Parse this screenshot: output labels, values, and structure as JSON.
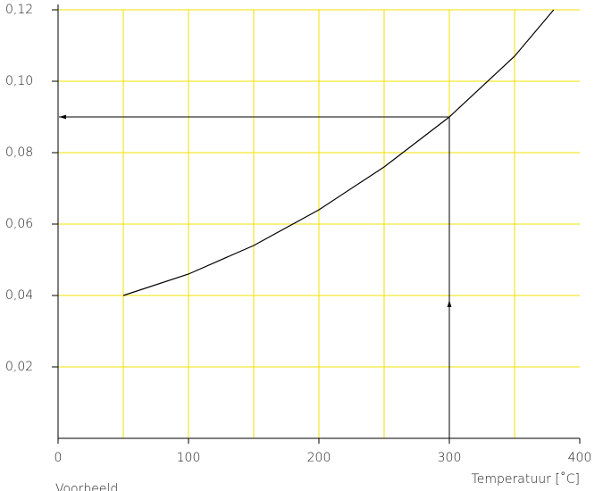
{
  "chart_data": {
    "type": "line",
    "x_label": "Temperatuur [˚C]",
    "note": "Voorbeeld",
    "x": [
      50,
      100,
      150,
      200,
      250,
      300,
      350,
      380
    ],
    "series": [
      {
        "color": "#000000",
        "values": [
          0.04,
          0.046,
          0.054,
          0.064,
          0.076,
          0.09,
          0.107,
          0.12
        ]
      }
    ],
    "xlim": [
      0,
      400
    ],
    "ylim": [
      0,
      0.12
    ],
    "xticks": [
      0,
      100,
      200,
      300,
      400
    ],
    "yticks": [
      {
        "value": 0.02,
        "label": "0,02"
      },
      {
        "value": 0.04,
        "label": "0,04"
      },
      {
        "value": 0.06,
        "label": "0,06"
      },
      {
        "value": 0.08,
        "label": "0,08"
      },
      {
        "value": 0.1,
        "label": "0,10"
      },
      {
        "value": 0.12,
        "label": "0,12"
      }
    ],
    "xgrid": [
      50,
      100,
      150,
      200,
      250,
      300,
      350
    ],
    "grid_color": "#f0e000",
    "annotation": {
      "x": 300,
      "y": 0.09
    }
  }
}
